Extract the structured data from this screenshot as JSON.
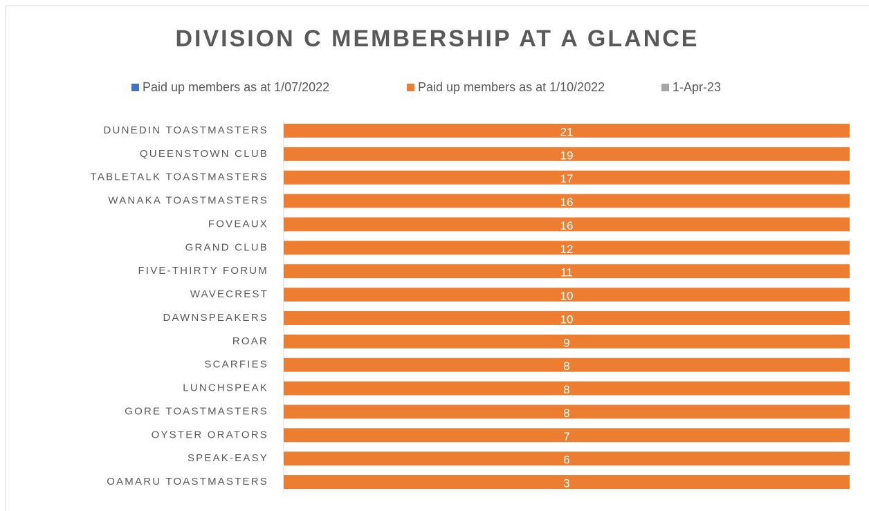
{
  "chart_data": {
    "type": "bar",
    "orientation": "horizontal",
    "stacking": "percent",
    "title": "DIVISION C MEMBERSHIP AT A GLANCE",
    "legend": "top",
    "categories": [
      "DUNEDIN TOASTMASTERS",
      "QUEENSTOWN CLUB",
      "TABLETALK TOASTMASTERS",
      "WANAKA TOASTMASTERS",
      "FOVEAUX",
      "GRAND CLUB",
      "FIVE-THIRTY FORUM",
      "WAVECREST",
      "DAWNSPEAKERS",
      "ROAR",
      "SCARFIES",
      "LUNCHSPEAK",
      "GORE TOASTMASTERS",
      "OYSTER ORATORS",
      "SPEAK-EASY",
      "OAMARU TOASTMASTERS"
    ],
    "series": [
      {
        "name": "Paid up members as at 1/07/2022",
        "color": "#4472c4",
        "values": [
          null,
          null,
          null,
          null,
          null,
          null,
          null,
          null,
          null,
          null,
          null,
          null,
          null,
          null,
          null,
          null
        ]
      },
      {
        "name": "Paid up members as at 1/10/2022",
        "color": "#ed7d31",
        "values": [
          21,
          19,
          17,
          16,
          16,
          12,
          11,
          10,
          10,
          9,
          8,
          8,
          8,
          7,
          6,
          3
        ]
      },
      {
        "name": "1-Apr-23",
        "color": "#a5a5a5",
        "values": [
          null,
          null,
          null,
          null,
          null,
          null,
          null,
          null,
          null,
          null,
          null,
          null,
          null,
          null,
          null,
          null
        ]
      }
    ]
  }
}
